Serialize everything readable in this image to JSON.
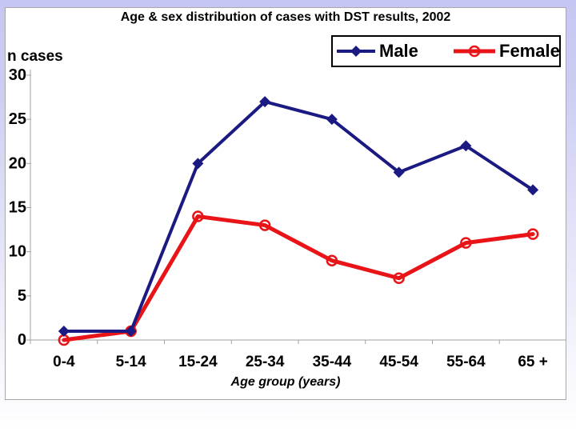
{
  "chart_data": {
    "type": "line",
    "title": "Age & sex distribution of cases with DST results, 2002",
    "ylabel": "n cases",
    "xlabel": "Age group (years)",
    "categories": [
      "0-4",
      "5-14",
      "15-24",
      "25-34",
      "35-44",
      "45-54",
      "55-64",
      "65 +"
    ],
    "series": [
      {
        "name": "Male",
        "color": "#1a1a82",
        "marker": "diamond",
        "line_width": 4,
        "values": [
          1,
          1,
          20,
          27,
          25,
          19,
          22,
          17
        ]
      },
      {
        "name": "Female",
        "color": "#e81418",
        "marker": "circle-open",
        "line_width": 5,
        "values": [
          0,
          1,
          14,
          13,
          9,
          7,
          11,
          12
        ]
      }
    ],
    "yticks": [
      0,
      5,
      10,
      15,
      20,
      25,
      30
    ],
    "ylim": [
      0,
      30
    ],
    "grid": false,
    "legend_position": "top-right",
    "axis_color": "#a3a3a3"
  }
}
